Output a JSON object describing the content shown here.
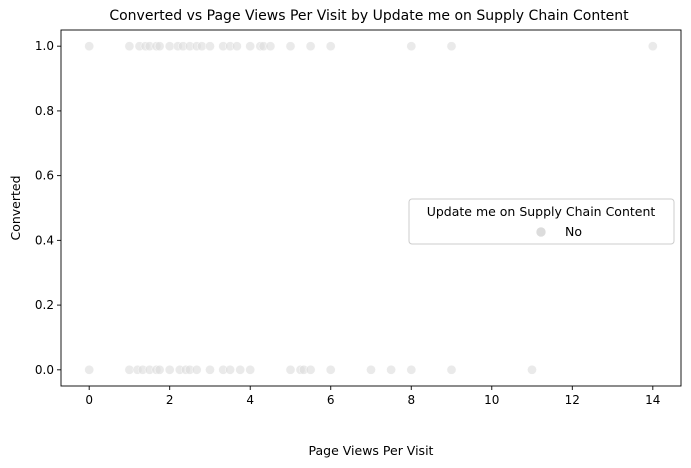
{
  "chart_data": {
    "type": "scatter",
    "title": "Converted vs Page Views Per Visit by Update me on Supply Chain Content",
    "xlabel": "Page Views Per Visit",
    "ylabel": "Converted",
    "xlim": [
      -0.7,
      14.7
    ],
    "ylim": [
      -0.05,
      1.05
    ],
    "xticks": [
      0,
      2,
      4,
      6,
      8,
      10,
      12,
      14
    ],
    "xtick_labels": [
      "0",
      "2",
      "4",
      "6",
      "8",
      "10",
      "12",
      "14"
    ],
    "yticks": [
      0.0,
      0.2,
      0.4,
      0.6,
      0.8,
      1.0
    ],
    "ytick_labels": [
      "0.0",
      "0.2",
      "0.4",
      "0.6",
      "0.8",
      "1.0"
    ],
    "grid": false,
    "legend": {
      "title": "Update me on Supply Chain Content",
      "placement": "center-right",
      "entries": [
        "No"
      ]
    },
    "series": [
      {
        "name": "No",
        "color": "#dcdcdc",
        "points": [
          [
            0,
            1
          ],
          [
            1,
            1
          ],
          [
            1.25,
            1
          ],
          [
            1.4,
            1
          ],
          [
            1.5,
            1
          ],
          [
            1.67,
            1
          ],
          [
            1.75,
            1
          ],
          [
            2,
            1
          ],
          [
            2.2,
            1
          ],
          [
            2.33,
            1
          ],
          [
            2.5,
            1
          ],
          [
            2.67,
            1
          ],
          [
            2.8,
            1
          ],
          [
            3,
            1
          ],
          [
            3.33,
            1
          ],
          [
            3.5,
            1
          ],
          [
            3.67,
            1
          ],
          [
            4,
            1
          ],
          [
            4.25,
            1
          ],
          [
            4.33,
            1
          ],
          [
            4.5,
            1
          ],
          [
            5,
            1
          ],
          [
            5.5,
            1
          ],
          [
            6,
            1
          ],
          [
            8,
            1
          ],
          [
            9,
            1
          ],
          [
            14,
            1
          ],
          [
            0,
            0
          ],
          [
            1,
            0
          ],
          [
            1.2,
            0
          ],
          [
            1.33,
            0
          ],
          [
            1.5,
            0
          ],
          [
            1.67,
            0
          ],
          [
            1.75,
            0
          ],
          [
            2,
            0
          ],
          [
            2.25,
            0
          ],
          [
            2.4,
            0
          ],
          [
            2.5,
            0
          ],
          [
            2.67,
            0
          ],
          [
            3,
            0
          ],
          [
            3.33,
            0
          ],
          [
            3.5,
            0
          ],
          [
            3.75,
            0
          ],
          [
            4,
            0
          ],
          [
            5,
            0
          ],
          [
            5.25,
            0
          ],
          [
            5.33,
            0
          ],
          [
            5.5,
            0
          ],
          [
            6,
            0
          ],
          [
            7,
            0
          ],
          [
            7.5,
            0
          ],
          [
            8,
            0
          ],
          [
            9,
            0
          ],
          [
            11,
            0
          ]
        ]
      }
    ]
  }
}
